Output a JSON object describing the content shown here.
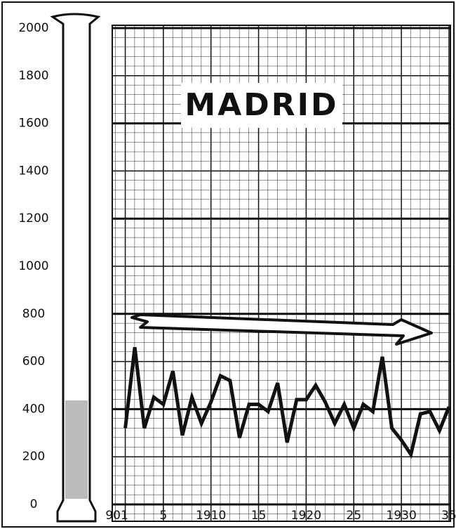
{
  "chart_data": {
    "type": "line",
    "title": "MADRID",
    "x": [
      1901,
      1902,
      1903,
      1904,
      1905,
      1906,
      1907,
      1908,
      1909,
      1910,
      1911,
      1912,
      1913,
      1914,
      1915,
      1916,
      1917,
      1918,
      1919,
      1920,
      1921,
      1922,
      1923,
      1924,
      1925,
      1926,
      1927,
      1928,
      1929,
      1930,
      1931,
      1932,
      1933,
      1934,
      1935
    ],
    "series": [
      {
        "color": "#111111",
        "values": [
          320,
          660,
          320,
          450,
          420,
          560,
          290,
          450,
          340,
          430,
          540,
          520,
          280,
          420,
          420,
          390,
          510,
          260,
          440,
          440,
          500,
          430,
          340,
          420,
          320,
          420,
          390,
          620,
          320,
          270,
          210,
          380,
          390,
          310,
          410
        ]
      }
    ],
    "xlim": [
      1900,
      1935
    ],
    "ylim": [
      0,
      2000
    ],
    "xticks": [
      {
        "value": 1901,
        "label": "901"
      },
      {
        "value": 1905,
        "label": "5"
      },
      1910,
      {
        "value": 1915,
        "label": "15"
      },
      1920,
      {
        "value": 1925,
        "label": "25"
      },
      1930,
      {
        "value": 1935,
        "label": "35"
      }
    ],
    "yticks": [
      0,
      200,
      400,
      600,
      800,
      1000,
      1200,
      1400,
      1600,
      1800,
      2000
    ],
    "grid": true
  }
}
